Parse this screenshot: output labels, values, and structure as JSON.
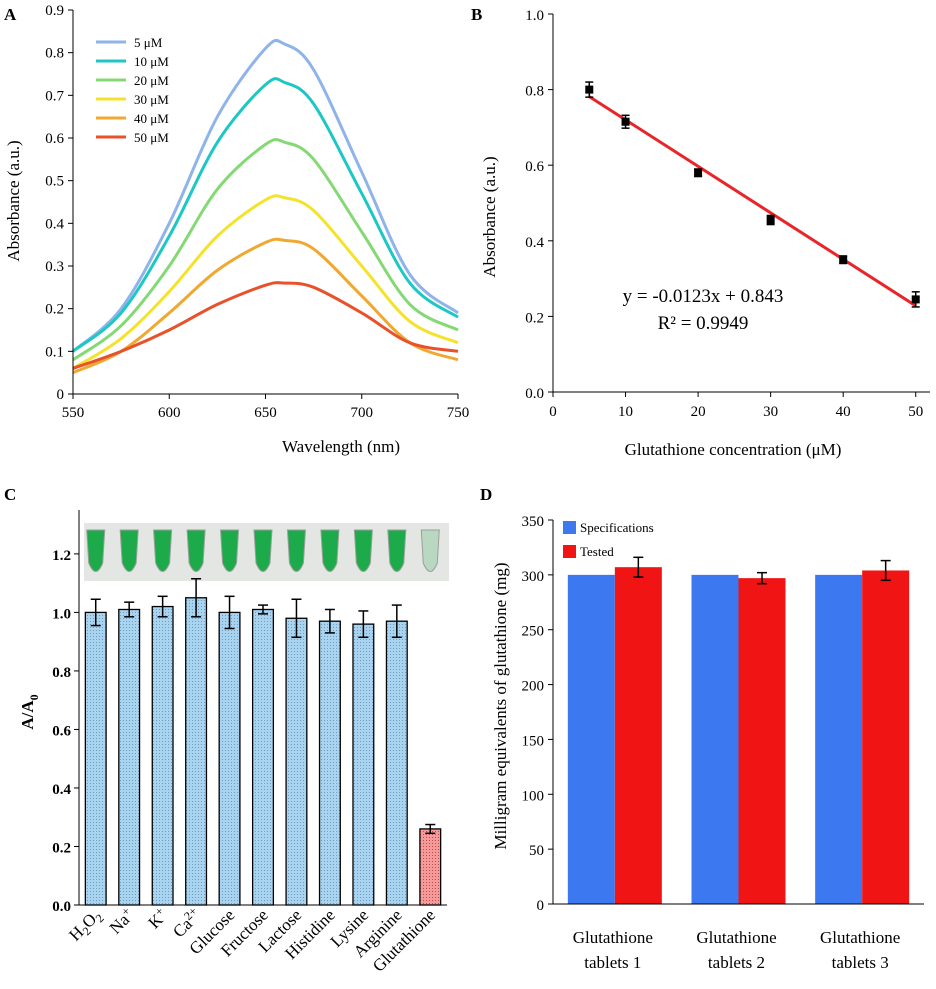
{
  "panels": [
    {
      "letter": "A"
    },
    {
      "letter": "B"
    },
    {
      "letter": "C"
    },
    {
      "letter": "D"
    }
  ],
  "chart_data": [
    {
      "panel": "A",
      "type": "line",
      "xlabel": "Wavelength (nm)",
      "ylabel": "Absorbance (a.u.)",
      "xlim": [
        550,
        750
      ],
      "ylim": [
        0,
        0.9
      ],
      "xticks": [
        "550",
        "600",
        "650",
        "700",
        "750"
      ],
      "yticks": [
        "0",
        "0.1",
        "0.2",
        "0.3",
        "0.4",
        "0.5",
        "0.6",
        "0.7",
        "0.8",
        "0.9"
      ],
      "legend_position": "top-left",
      "series": [
        {
          "name": "5 μM",
          "color": "#8FB4EA",
          "x": [
            550,
            575,
            600,
            625,
            650,
            660,
            675,
            700,
            725,
            750
          ],
          "y": [
            0.1,
            0.2,
            0.4,
            0.65,
            0.81,
            0.82,
            0.76,
            0.52,
            0.28,
            0.19
          ]
        },
        {
          "name": "10 μM",
          "color": "#1CC7C4",
          "x": [
            550,
            575,
            600,
            625,
            650,
            660,
            675,
            700,
            725,
            750
          ],
          "y": [
            0.1,
            0.19,
            0.37,
            0.59,
            0.725,
            0.73,
            0.68,
            0.47,
            0.26,
            0.18
          ]
        },
        {
          "name": "20 μM",
          "color": "#85D975",
          "x": [
            550,
            575,
            600,
            625,
            650,
            660,
            675,
            700,
            725,
            750
          ],
          "y": [
            0.08,
            0.16,
            0.3,
            0.48,
            0.585,
            0.59,
            0.55,
            0.38,
            0.21,
            0.15
          ]
        },
        {
          "name": "30 μM",
          "color": "#F5E22A",
          "x": [
            550,
            575,
            600,
            625,
            650,
            660,
            675,
            700,
            725,
            750
          ],
          "y": [
            0.06,
            0.13,
            0.24,
            0.37,
            0.455,
            0.46,
            0.43,
            0.3,
            0.17,
            0.12
          ]
        },
        {
          "name": "40 μM",
          "color": "#F0A830",
          "x": [
            550,
            575,
            600,
            625,
            650,
            660,
            675,
            700,
            725,
            750
          ],
          "y": [
            0.05,
            0.1,
            0.19,
            0.29,
            0.355,
            0.36,
            0.34,
            0.23,
            0.12,
            0.08
          ]
        },
        {
          "name": "50 μM",
          "color": "#E8522A",
          "x": [
            550,
            575,
            600,
            625,
            650,
            660,
            675,
            700,
            725,
            750
          ],
          "y": [
            0.06,
            0.1,
            0.15,
            0.21,
            0.255,
            0.26,
            0.25,
            0.19,
            0.12,
            0.1
          ]
        }
      ]
    },
    {
      "panel": "B",
      "type": "scatter",
      "xlabel": "Glutathione concentration (μM)",
      "ylabel": "Absorbance (a.u.)",
      "xlim": [
        0,
        55
      ],
      "ylim": [
        0,
        1.0
      ],
      "xticks": [
        "0",
        "10",
        "20",
        "30",
        "40",
        "50"
      ],
      "yticks": [
        "0.0",
        "0.2",
        "0.4",
        "0.6",
        "0.8",
        "1.0"
      ],
      "x": [
        5,
        10,
        20,
        30,
        40,
        50
      ],
      "y": [
        0.8,
        0.715,
        0.58,
        0.455,
        0.35,
        0.245
      ],
      "err": [
        0.02,
        0.017,
        0.01,
        0.012,
        0.01,
        0.02
      ],
      "fit": {
        "slope": -0.0123,
        "intercept": 0.843,
        "x_range": [
          5,
          50
        ],
        "color": "#E8262A"
      },
      "equation": "y = -0.0123x + 0.843",
      "r_squared": "R² = 0.9949"
    },
    {
      "panel": "C",
      "type": "bar",
      "ylabel": "A/A",
      "ylabel_sub": "0",
      "ylim": [
        0,
        1.35
      ],
      "yticks": [
        "0.0",
        "0.2",
        "0.4",
        "0.6",
        "0.8",
        "1.0",
        "1.2"
      ],
      "categories": [
        {
          "main": "H",
          "sub": "2",
          "main2": "O",
          "sub2": "2",
          "sup": ""
        },
        {
          "main": "Na",
          "sub": "",
          "main2": "",
          "sub2": "",
          "sup": "+"
        },
        {
          "main": "K",
          "sub": "",
          "main2": "",
          "sub2": "",
          "sup": "+"
        },
        {
          "main": "Ca",
          "sub": "",
          "main2": "",
          "sub2": "",
          "sup": "2+"
        },
        {
          "main": "Glucose",
          "sub": "",
          "main2": "",
          "sub2": "",
          "sup": ""
        },
        {
          "main": "Fructose",
          "sub": "",
          "main2": "",
          "sub2": "",
          "sup": ""
        },
        {
          "main": "Lactose",
          "sub": "",
          "main2": "",
          "sub2": "",
          "sup": ""
        },
        {
          "main": "Histidine",
          "sub": "",
          "main2": "",
          "sub2": "",
          "sup": ""
        },
        {
          "main": "Lysine",
          "sub": "",
          "main2": "",
          "sub2": "",
          "sup": ""
        },
        {
          "main": "Arginine",
          "sub": "",
          "main2": "",
          "sub2": "",
          "sup": ""
        },
        {
          "main": "Glutathione",
          "sub": "",
          "main2": "",
          "sub2": "",
          "sup": ""
        }
      ],
      "values": [
        1.0,
        1.01,
        1.02,
        1.05,
        1.0,
        1.01,
        0.98,
        0.97,
        0.96,
        0.97,
        0.26
      ],
      "err": [
        0.045,
        0.025,
        0.035,
        0.065,
        0.055,
        0.015,
        0.065,
        0.04,
        0.045,
        0.055,
        0.015
      ],
      "bar_colors": [
        "#A9D4F0",
        "#A9D4F0",
        "#A9D4F0",
        "#A9D4F0",
        "#A9D4F0",
        "#A9D4F0",
        "#A9D4F0",
        "#A9D4F0",
        "#A9D4F0",
        "#A9D4F0",
        "#F59A9A"
      ],
      "photo_strip": {
        "tube_count": 11,
        "tube_colors": [
          "#1DAA4A",
          "#1DAA4A",
          "#1DAA4A",
          "#1DAA4A",
          "#1DAA4A",
          "#1DAA4A",
          "#1DAA4A",
          "#1DAA4A",
          "#1DAA4A",
          "#1DAA4A",
          "#B8D8C2"
        ]
      }
    },
    {
      "panel": "D",
      "type": "bar",
      "ylabel": "Milligram equivalents of glutathione  (mg)",
      "ylim": [
        0,
        350
      ],
      "yticks": [
        "0",
        "50",
        "100",
        "150",
        "200",
        "250",
        "300",
        "350"
      ],
      "categories": [
        {
          "line1": "Glutathione",
          "line2": "tablets  1"
        },
        {
          "line1": "Glutathione",
          "line2": "tablets  2"
        },
        {
          "line1": "Glutathione",
          "line2": "tablets  3"
        }
      ],
      "legend_position": "top-left",
      "series": [
        {
          "name": "Specifications",
          "color": "#3C78F0",
          "values": [
            300,
            300,
            300
          ],
          "err": [
            0,
            0,
            0
          ]
        },
        {
          "name": "Tested",
          "color": "#F01414",
          "values": [
            307,
            297,
            304
          ],
          "err": [
            9,
            5,
            9
          ]
        }
      ]
    }
  ]
}
